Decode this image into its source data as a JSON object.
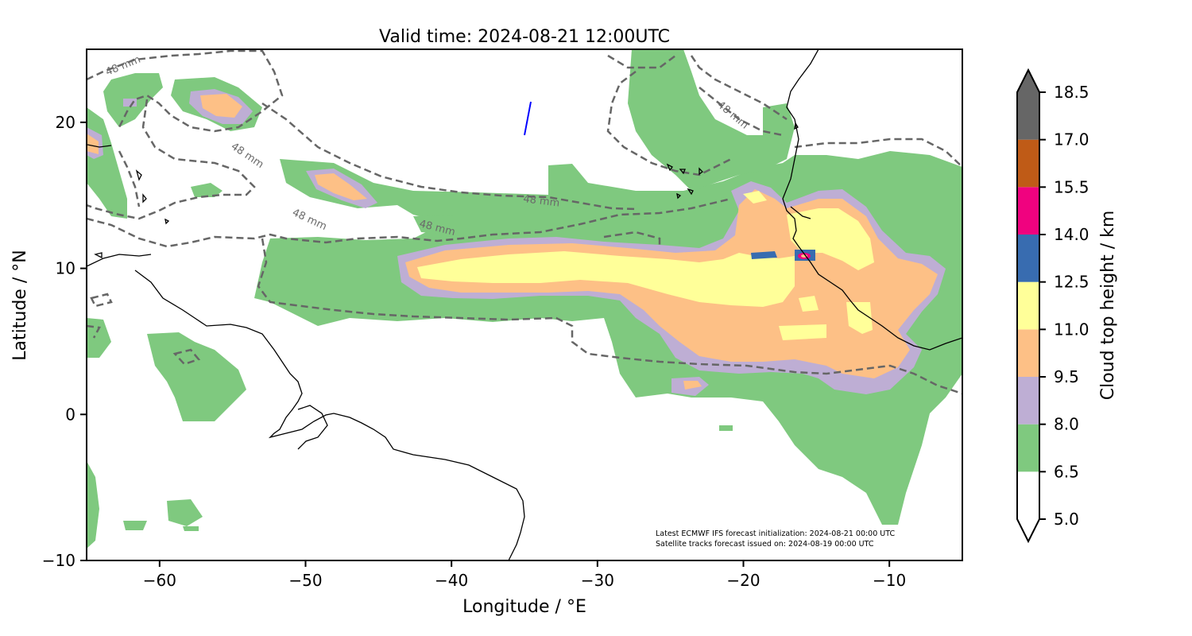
{
  "title": "Valid time: 2024-08-21 12:00UTC",
  "xlabel": "Longitude / °E",
  "ylabel": "Latitude / °N",
  "x_ticks": [
    -60,
    -50,
    -40,
    -30,
    -20,
    -10
  ],
  "y_ticks": [
    20,
    10,
    0,
    -10
  ],
  "x_tick_labels": [
    "−60",
    "−50",
    "−40",
    "−30",
    "−20",
    "−10"
  ],
  "y_tick_labels": [
    "20",
    "10",
    "0",
    "−10"
  ],
  "lon_range": [
    -65,
    -5
  ],
  "lat_range": [
    -10,
    25
  ],
  "colorbar": {
    "label": "Cloud top height / km",
    "levels": [
      "5.0",
      "6.5",
      "8.0",
      "9.5",
      "11.0",
      "12.5",
      "14.0",
      "15.5",
      "17.0",
      "18.5"
    ],
    "colors": [
      "#ffffff",
      "#7fc97f",
      "#beaed4",
      "#fdc086",
      "#ffff99",
      "#386cb0",
      "#f0027f",
      "#bf5b17",
      "#666666"
    ]
  },
  "contour_label": "48 mm",
  "contour_label_count": 6,
  "satellite_track_color": "#0000ff",
  "notes": {
    "line1": "Latest ECMWF IFS forecast initialization: 2024-08-21 00:00 UTC",
    "line2": "Satellite tracks forecast issued on: 2024-08-19 00:00 UTC"
  }
}
